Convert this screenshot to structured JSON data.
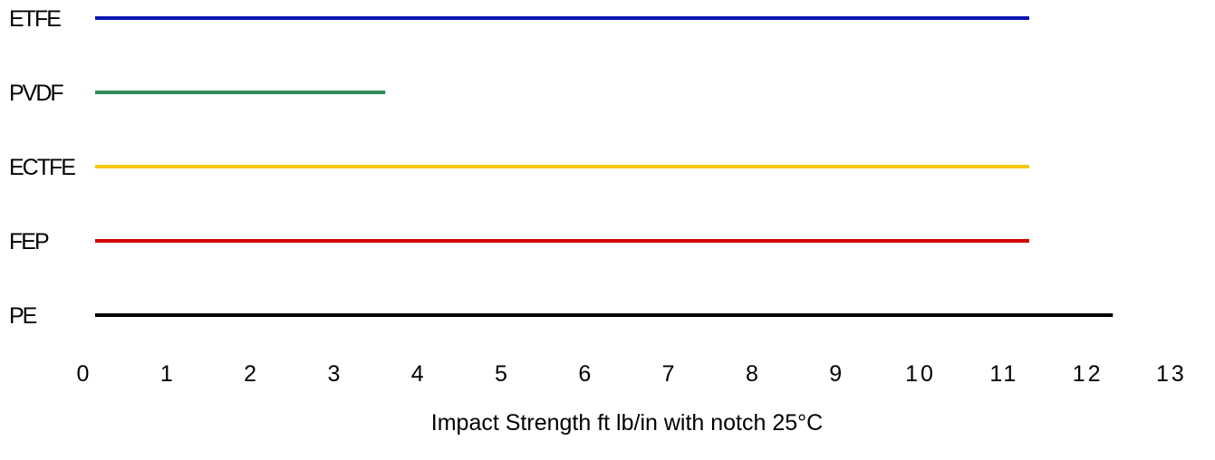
{
  "chart_data": {
    "type": "bar",
    "orientation": "horizontal",
    "categories": [
      "ETFE",
      "PVDF",
      "ECTFE",
      "FEP",
      "PE"
    ],
    "values": [
      11.3,
      3.6,
      11.3,
      11.3,
      12.3
    ],
    "colors": [
      "#0a14b4",
      "#2e8b57",
      "#f5c800",
      "#d40000",
      "#000000"
    ],
    "xticks": [
      "0",
      "1",
      "2",
      "3",
      "4",
      "5",
      "6",
      "7",
      "8",
      "9",
      "10",
      "11",
      "12",
      "13"
    ],
    "xlim": [
      0,
      13
    ],
    "xlabel": "Impact Strength ft lb/in with notch 25°C",
    "grid": false
  }
}
